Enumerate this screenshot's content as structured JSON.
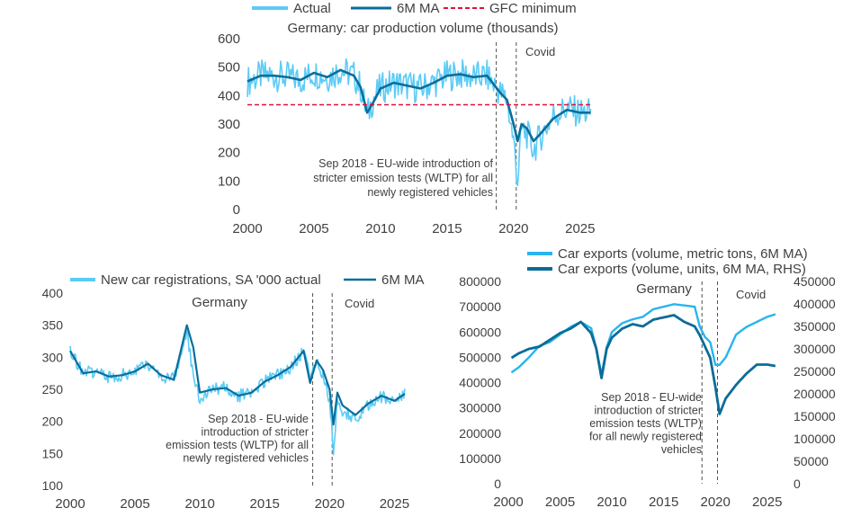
{
  "colors": {
    "actual": "#5ccbf5",
    "ma": "#0a6e9c",
    "gfc": "#e0103a",
    "vline": "#505050",
    "text": "#404040",
    "exports_tons": "#29b4ee",
    "exports_units": "#0b6c99"
  },
  "chart_data": [
    {
      "type": "line",
      "title": "Germany: car production volume (thousands)",
      "xlabel": "",
      "ylabel": "",
      "xlim": [
        2000,
        2026.5
      ],
      "ylim": [
        0,
        600
      ],
      "x_ticks": [
        "2000",
        "2005",
        "2010",
        "2015",
        "2020",
        "2025"
      ],
      "y_ticks": [
        "0",
        "100",
        "200",
        "300",
        "400",
        "500",
        "600"
      ],
      "grid": false,
      "legend_position": "top",
      "series": [
        {
          "name": "Actual",
          "style": "noisy",
          "x": [
            2000,
            2001,
            2002,
            2003,
            2004,
            2005,
            2006,
            2007,
            2008,
            2008.5,
            2009,
            2009.5,
            2010,
            2011,
            2012,
            2013,
            2014,
            2015,
            2016,
            2017,
            2018,
            2018.5,
            2019,
            2019.5,
            2020,
            2020.3,
            2020.6,
            2021,
            2021.5,
            2022,
            2023,
            2024,
            2025,
            2025.8
          ],
          "y": [
            450,
            470,
            470,
            465,
            455,
            480,
            465,
            490,
            470,
            430,
            330,
            395,
            425,
            445,
            435,
            425,
            445,
            470,
            475,
            465,
            470,
            440,
            410,
            385,
            240,
            100,
            280,
            265,
            210,
            255,
            330,
            355,
            340,
            340
          ]
        },
        {
          "name": "6M MA",
          "x": [
            2000,
            2001,
            2002,
            2003,
            2004,
            2005,
            2006,
            2007,
            2008,
            2008.5,
            2009,
            2009.5,
            2010,
            2011,
            2012,
            2013,
            2014,
            2015,
            2016,
            2017,
            2018,
            2018.5,
            2019,
            2019.5,
            2020,
            2020.3,
            2020.6,
            2021,
            2021.5,
            2022,
            2023,
            2024,
            2025,
            2025.8
          ],
          "y": [
            450,
            470,
            470,
            465,
            455,
            480,
            465,
            490,
            470,
            430,
            340,
            380,
            425,
            445,
            435,
            425,
            445,
            470,
            475,
            465,
            470,
            440,
            410,
            385,
            300,
            240,
            300,
            285,
            240,
            265,
            320,
            350,
            340,
            340
          ]
        },
        {
          "name": "GFC minimum",
          "style": "dashed",
          "x": [
            2000,
            2025.8
          ],
          "y": [
            368,
            368
          ]
        }
      ],
      "annotations": [
        {
          "x": 2018.7,
          "text": [
            "Sep 2018 - EU-wide introduction of",
            "stricter emission tests (WLTP) for all",
            "newly registered vehicles"
          ]
        },
        {
          "x": 2020.2,
          "text": [
            "Covid"
          ]
        }
      ]
    },
    {
      "type": "line",
      "title": "",
      "region_label": "Germany",
      "xlabel": "",
      "ylabel": "",
      "xlim": [
        2000,
        2026.5
      ],
      "ylim": [
        100,
        400
      ],
      "x_ticks": [
        "2000",
        "2005",
        "2010",
        "2015",
        "2020",
        "2025"
      ],
      "y_ticks": [
        "100",
        "150",
        "200",
        "250",
        "300",
        "350",
        "400"
      ],
      "grid": false,
      "legend_position": "top",
      "series": [
        {
          "name": "New car registrations, SA '000 actual",
          "style": "noisy",
          "x": [
            2000,
            2001,
            2002,
            2003,
            2004,
            2005,
            2006,
            2007,
            2008,
            2009,
            2009.5,
            2010,
            2011,
            2012,
            2013,
            2014,
            2015,
            2016,
            2017,
            2018,
            2018.5,
            2019,
            2019.5,
            2020,
            2020.3,
            2020.6,
            2021,
            2022,
            2023,
            2024,
            2025,
            2025.8
          ],
          "y": [
            310,
            275,
            278,
            270,
            272,
            278,
            290,
            272,
            265,
            335,
            275,
            235,
            250,
            252,
            240,
            245,
            262,
            272,
            285,
            308,
            272,
            295,
            272,
            232,
            150,
            240,
            215,
            205,
            225,
            238,
            230,
            245
          ]
        },
        {
          "name": "6M MA",
          "x": [
            2000,
            2001,
            2002,
            2003,
            2004,
            2005,
            2006,
            2007,
            2008,
            2009,
            2009.5,
            2010,
            2011,
            2012,
            2013,
            2014,
            2015,
            2016,
            2017,
            2018,
            2018.5,
            2019,
            2019.5,
            2020,
            2020.3,
            2020.6,
            2021,
            2022,
            2023,
            2024,
            2025,
            2025.8
          ],
          "y": [
            310,
            275,
            278,
            270,
            272,
            278,
            290,
            272,
            265,
            350,
            315,
            245,
            250,
            252,
            240,
            245,
            262,
            272,
            285,
            310,
            260,
            295,
            280,
            250,
            195,
            245,
            225,
            210,
            228,
            240,
            232,
            243
          ]
        }
      ],
      "annotations": [
        {
          "x": 2018.7,
          "text": [
            "Sep 2018 - EU-wide",
            "introduction of stricter",
            "emission tests (WLTP) for all",
            "newly registered vehicles"
          ]
        },
        {
          "x": 2020.2,
          "text": [
            "Covid"
          ]
        }
      ]
    },
    {
      "type": "line",
      "title": "",
      "region_label": "Germany",
      "xlabel": "",
      "ylabel": "",
      "xlim": [
        2000,
        2026.5
      ],
      "ylim": [
        0,
        800000
      ],
      "y2lim": [
        0,
        450000
      ],
      "x_ticks": [
        "2000",
        "2005",
        "2010",
        "2015",
        "2020",
        "2025"
      ],
      "y_ticks": [
        "0",
        "100000",
        "200000",
        "300000",
        "400000",
        "500000",
        "600000",
        "700000",
        "800000"
      ],
      "y2_ticks": [
        "0",
        "50000",
        "100000",
        "150000",
        "200000",
        "250000",
        "300000",
        "350000",
        "400000",
        "450000"
      ],
      "grid": false,
      "legend_position": "top",
      "series": [
        {
          "name": "Car exports (volume, metric tons, 6M MA)",
          "axis": "left",
          "x": [
            2000.3,
            2001,
            2002,
            2003,
            2004,
            2005,
            2006,
            2007,
            2008,
            2008.5,
            2009,
            2009.5,
            2010,
            2011,
            2012,
            2013,
            2014,
            2015,
            2016,
            2017,
            2018,
            2018.5,
            2019,
            2019.5,
            2020,
            2020.4,
            2021,
            2022,
            2023,
            2024,
            2025,
            2025.8
          ],
          "y": [
            440000,
            460000,
            500000,
            545000,
            560000,
            590000,
            620000,
            640000,
            615000,
            535000,
            430000,
            540000,
            600000,
            635000,
            650000,
            660000,
            690000,
            700000,
            710000,
            705000,
            700000,
            620000,
            580000,
            560000,
            470000,
            470000,
            500000,
            590000,
            620000,
            640000,
            660000,
            670000
          ]
        },
        {
          "name": "Car exports (volume, units, 6M MA, RHS)",
          "axis": "right",
          "x": [
            2000.3,
            2001,
            2002,
            2003,
            2004,
            2005,
            2006,
            2007,
            2008,
            2008.5,
            2009,
            2009.5,
            2010,
            2011,
            2012,
            2013,
            2014,
            2015,
            2016,
            2017,
            2018,
            2018.5,
            2019,
            2019.5,
            2020,
            2020.4,
            2021,
            2022,
            2023,
            2024,
            2025,
            2025.8
          ],
          "y": [
            280000,
            290000,
            300000,
            305000,
            320000,
            335000,
            345000,
            360000,
            335000,
            300000,
            235000,
            300000,
            325000,
            345000,
            355000,
            350000,
            365000,
            370000,
            375000,
            360000,
            350000,
            330000,
            305000,
            280000,
            215000,
            155000,
            190000,
            220000,
            245000,
            265000,
            265000,
            262000
          ]
        }
      ],
      "annotations": [
        {
          "x": 2018.7,
          "text": [
            "Sep 2018 - EU-wide",
            "introduction of stricter",
            "emission tests (WLTP)",
            "for all newly registered",
            "vehicles"
          ]
        },
        {
          "x": 2020.2,
          "text": [
            "Covid"
          ]
        }
      ]
    }
  ]
}
